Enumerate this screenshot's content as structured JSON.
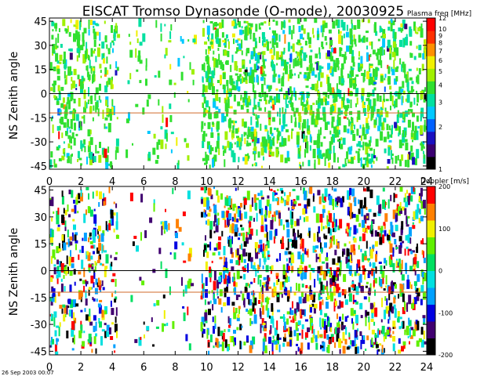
{
  "figure": {
    "title": "EISCAT Tromso Dynasonde (O-mode),  20030925",
    "timestamp": "26 Sep 2003 00:07"
  },
  "chart_data": [
    {
      "type": "heatmap",
      "name": "plasma-frequency",
      "ylabel": "NS Zenith angle",
      "xlim": [
        0,
        24
      ],
      "ylim": [
        -47,
        47
      ],
      "xticks": [
        0,
        2,
        4,
        6,
        8,
        10,
        12,
        14,
        16,
        18,
        20,
        22,
        24
      ],
      "yticks": [
        45,
        30,
        15,
        0,
        -15,
        -30,
        -45
      ],
      "reference_lines": [
        {
          "y": 0,
          "color": "#000000"
        },
        {
          "y": -12,
          "color": "#d06a2a"
        }
      ],
      "colorbar": {
        "label": "Plasma freq [MHz]",
        "scale": "log",
        "range": [
          1,
          12
        ],
        "ticks": [
          12,
          10,
          9,
          8,
          7,
          6,
          5,
          4,
          3,
          2,
          1
        ]
      },
      "description_values": {
        "coverage_hours": [
          [
            0,
            4.3
          ],
          [
            4.8,
            9.2
          ],
          [
            9.6,
            24
          ]
        ],
        "dominant_range_mhz": [
          3,
          6
        ]
      }
    },
    {
      "type": "heatmap",
      "name": "doppler",
      "ylabel": "NS Zenith angle",
      "xlim": [
        0,
        24
      ],
      "ylim": [
        -47,
        47
      ],
      "xticks": [
        0,
        2,
        4,
        6,
        8,
        10,
        12,
        14,
        16,
        18,
        20,
        22,
        24
      ],
      "yticks": [
        45,
        30,
        15,
        0,
        -15,
        -30,
        -45
      ],
      "reference_lines": [
        {
          "y": 0,
          "color": "#000000"
        },
        {
          "y": -12,
          "color": "#d06a2a"
        }
      ],
      "colorbar": {
        "label": "Doppler [m/s]",
        "scale": "linear",
        "range": [
          -200,
          200
        ],
        "ticks": [
          200,
          100,
          0,
          -100,
          -200
        ]
      },
      "description_values": {
        "coverage_hours": [
          [
            0,
            4.3
          ],
          [
            4.8,
            9.2
          ],
          [
            9.6,
            24
          ]
        ],
        "dominant_range_ms": [
          -150,
          150
        ]
      }
    }
  ],
  "colors": {
    "freq_scale": [
      "#000000",
      "#3a0070",
      "#1a10c0",
      "#0060ff",
      "#00c8ff",
      "#00e0a0",
      "#30e030",
      "#a0f000",
      "#f0f000",
      "#ff9000",
      "#ff3000",
      "#ff0000"
    ],
    "doppler_scale": [
      "#000000",
      "#400070",
      "#0000e0",
      "#00a0ff",
      "#00e0e0",
      "#00e060",
      "#60f000",
      "#f0f000",
      "#ff8000",
      "#ff0000"
    ]
  }
}
